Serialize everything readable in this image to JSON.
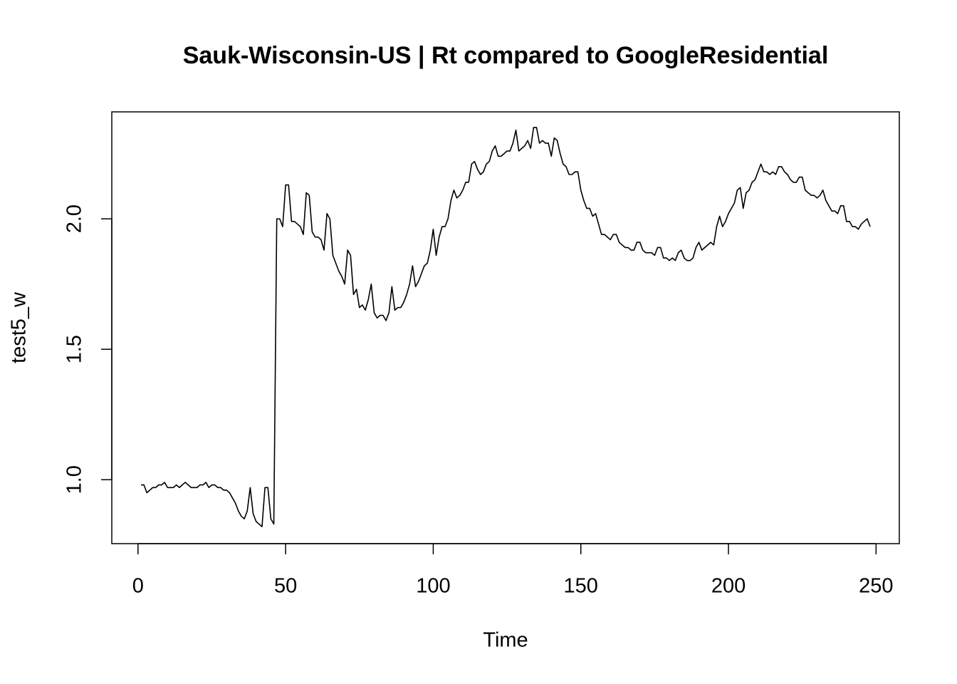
{
  "chart_data": {
    "type": "line",
    "title": "Sauk-Wisconsin-US | Rt compared to GoogleResidential",
    "x_label": "Time",
    "y_label": "test5_w",
    "color": "#000000",
    "xlim": [
      -8.88,
      257.88
    ],
    "ylim": [
      0.755,
      2.41
    ],
    "xticks": [
      0,
      50,
      100,
      150,
      200,
      250
    ],
    "yticks": [
      {
        "value": 1,
        "label": "1.0"
      },
      1.5,
      {
        "value": 2,
        "label": "2.0"
      }
    ],
    "x": [
      1,
      2,
      3,
      4,
      5,
      6,
      7,
      8,
      9,
      10,
      11,
      12,
      13,
      14,
      15,
      16,
      17,
      18,
      19,
      20,
      21,
      22,
      23,
      24,
      25,
      26,
      27,
      28,
      29,
      30,
      31,
      32,
      33,
      34,
      35,
      36,
      37,
      38,
      39,
      40,
      41,
      42,
      43,
      44,
      45,
      46,
      47,
      48,
      49,
      50,
      51,
      52,
      53,
      54,
      55,
      56,
      57,
      58,
      59,
      60,
      61,
      62,
      63,
      64,
      65,
      66,
      67,
      68,
      69,
      70,
      71,
      72,
      73,
      74,
      75,
      76,
      77,
      78,
      79,
      80,
      81,
      82,
      83,
      84,
      85,
      86,
      87,
      88,
      89,
      90,
      91,
      92,
      93,
      94,
      95,
      96,
      97,
      98,
      99,
      100,
      101,
      102,
      103,
      104,
      105,
      106,
      107,
      108,
      109,
      110,
      111,
      112,
      113,
      114,
      115,
      116,
      117,
      118,
      119,
      120,
      121,
      122,
      123,
      124,
      125,
      126,
      127,
      128,
      129,
      130,
      131,
      132,
      133,
      134,
      135,
      136,
      137,
      138,
      139,
      140,
      141,
      142,
      143,
      144,
      145,
      146,
      147,
      148,
      149,
      150,
      151,
      152,
      153,
      154,
      155,
      156,
      157,
      158,
      159,
      160,
      161,
      162,
      163,
      164,
      165,
      166,
      167,
      168,
      169,
      170,
      171,
      172,
      173,
      174,
      175,
      176,
      177,
      178,
      179,
      180,
      181,
      182,
      183,
      184,
      185,
      186,
      187,
      188,
      189,
      190,
      191,
      192,
      193,
      194,
      195,
      196,
      197,
      198,
      199,
      200,
      201,
      202,
      203,
      204,
      205,
      206,
      207,
      208,
      209,
      210,
      211,
      212,
      213,
      214,
      215,
      216,
      217,
      218,
      219,
      220,
      221,
      222,
      223,
      224,
      225,
      226,
      227,
      228,
      229,
      230,
      231,
      232,
      233,
      234,
      235,
      236,
      237,
      238,
      239,
      240,
      241,
      242,
      243,
      244,
      245,
      246,
      247,
      248
    ],
    "values": [
      0.98,
      0.98,
      0.95,
      0.96,
      0.97,
      0.97,
      0.98,
      0.98,
      0.99,
      0.97,
      0.97,
      0.97,
      0.98,
      0.97,
      0.98,
      0.99,
      0.98,
      0.97,
      0.97,
      0.97,
      0.98,
      0.98,
      0.99,
      0.97,
      0.98,
      0.98,
      0.97,
      0.97,
      0.96,
      0.96,
      0.95,
      0.93,
      0.91,
      0.88,
      0.86,
      0.85,
      0.88,
      0.97,
      0.87,
      0.84,
      0.83,
      0.82,
      0.97,
      0.97,
      0.85,
      0.83,
      2,
      2,
      1.97,
      2.13,
      2.13,
      1.99,
      1.99,
      1.98,
      1.97,
      1.94,
      2.1,
      2.09,
      1.95,
      1.93,
      1.93,
      1.92,
      1.88,
      2.02,
      2,
      1.86,
      1.83,
      1.8,
      1.78,
      1.75,
      1.88,
      1.86,
      1.71,
      1.73,
      1.66,
      1.67,
      1.65,
      1.69,
      1.75,
      1.64,
      1.62,
      1.63,
      1.63,
      1.61,
      1.64,
      1.74,
      1.65,
      1.66,
      1.66,
      1.68,
      1.71,
      1.75,
      1.82,
      1.74,
      1.76,
      1.79,
      1.82,
      1.83,
      1.88,
      1.96,
      1.86,
      1.93,
      1.97,
      1.97,
      2,
      2.07,
      2.11,
      2.08,
      2.09,
      2.11,
      2.14,
      2.14,
      2.21,
      2.22,
      2.19,
      2.17,
      2.18,
      2.21,
      2.22,
      2.26,
      2.28,
      2.24,
      2.24,
      2.25,
      2.26,
      2.26,
      2.29,
      2.34,
      2.26,
      2.27,
      2.28,
      2.3,
      2.27,
      2.35,
      2.35,
      2.29,
      2.3,
      2.29,
      2.29,
      2.24,
      2.31,
      2.3,
      2.25,
      2.21,
      2.2,
      2.17,
      2.17,
      2.18,
      2.18,
      2.11,
      2.07,
      2.04,
      2.04,
      2.01,
      2.02,
      1.98,
      1.94,
      1.94,
      1.93,
      1.92,
      1.94,
      1.94,
      1.91,
      1.9,
      1.89,
      1.89,
      1.88,
      1.88,
      1.91,
      1.91,
      1.88,
      1.87,
      1.87,
      1.87,
      1.86,
      1.89,
      1.89,
      1.85,
      1.85,
      1.84,
      1.85,
      1.84,
      1.87,
      1.88,
      1.85,
      1.84,
      1.84,
      1.85,
      1.89,
      1.91,
      1.88,
      1.89,
      1.9,
      1.91,
      1.9,
      1.97,
      2.01,
      1.97,
      1.99,
      2.02,
      2.04,
      2.06,
      2.11,
      2.12,
      2.04,
      2.1,
      2.11,
      2.14,
      2.15,
      2.18,
      2.21,
      2.18,
      2.18,
      2.17,
      2.18,
      2.17,
      2.2,
      2.2,
      2.18,
      2.17,
      2.15,
      2.14,
      2.14,
      2.16,
      2.16,
      2.11,
      2.1,
      2.09,
      2.09,
      2.08,
      2.09,
      2.11,
      2.07,
      2.05,
      2.03,
      2.03,
      2.02,
      2.05,
      2.05,
      1.99,
      1.99,
      1.97,
      1.97,
      1.96,
      1.98,
      1.99,
      2,
      1.97
    ]
  }
}
